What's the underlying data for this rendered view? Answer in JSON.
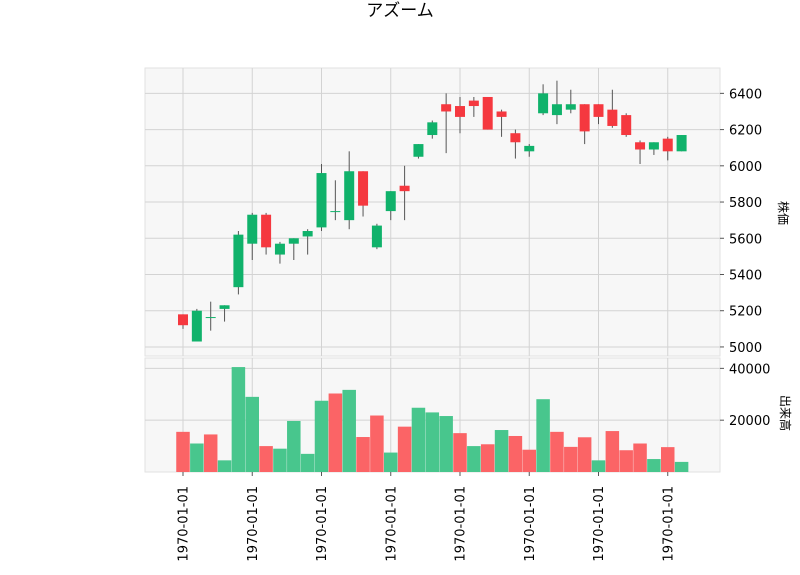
{
  "chart_data": [
    {
      "type": "candlestick",
      "title": "アズーム",
      "ylabel": "株価",
      "ylim": [
        4950,
        6540
      ],
      "yticks": [
        5000,
        5200,
        5400,
        5600,
        5800,
        6000,
        6200,
        6400
      ],
      "x_tick_label": "1970-01-01",
      "grid": true,
      "up_color": "#10b26b",
      "down_color": "#f5383f",
      "candles": [
        {
          "o": 5180,
          "h": 5180,
          "l": 5100,
          "c": 5120
        },
        {
          "o": 5030,
          "h": 5210,
          "l": 5030,
          "c": 5200
        },
        {
          "o": 5160,
          "h": 5250,
          "l": 5090,
          "c": 5165
        },
        {
          "o": 5210,
          "h": 5230,
          "l": 5140,
          "c": 5230
        },
        {
          "o": 5330,
          "h": 5640,
          "l": 5290,
          "c": 5620
        },
        {
          "o": 5570,
          "h": 5740,
          "l": 5480,
          "c": 5730
        },
        {
          "o": 5730,
          "h": 5740,
          "l": 5510,
          "c": 5550
        },
        {
          "o": 5510,
          "h": 5580,
          "l": 5460,
          "c": 5570
        },
        {
          "o": 5570,
          "h": 5600,
          "l": 5480,
          "c": 5600
        },
        {
          "o": 5610,
          "h": 5650,
          "l": 5510,
          "c": 5640
        },
        {
          "o": 5660,
          "h": 6010,
          "l": 5640,
          "c": 5960
        },
        {
          "o": 5750,
          "h": 5920,
          "l": 5700,
          "c": 5750
        },
        {
          "o": 5700,
          "h": 6080,
          "l": 5650,
          "c": 5970
        },
        {
          "o": 5970,
          "h": 5970,
          "l": 5720,
          "c": 5780
        },
        {
          "o": 5550,
          "h": 5680,
          "l": 5540,
          "c": 5670
        },
        {
          "o": 5750,
          "h": 5860,
          "l": 5700,
          "c": 5860
        },
        {
          "o": 5890,
          "h": 6000,
          "l": 5700,
          "c": 5860
        },
        {
          "o": 6050,
          "h": 6120,
          "l": 6040,
          "c": 6120
        },
        {
          "o": 6170,
          "h": 6250,
          "l": 6150,
          "c": 6240
        },
        {
          "o": 6340,
          "h": 6400,
          "l": 6070,
          "c": 6300
        },
        {
          "o": 6330,
          "h": 6380,
          "l": 6180,
          "c": 6270
        },
        {
          "o": 6360,
          "h": 6380,
          "l": 6270,
          "c": 6330
        },
        {
          "o": 6380,
          "h": 6380,
          "l": 6200,
          "c": 6200
        },
        {
          "o": 6300,
          "h": 6310,
          "l": 6160,
          "c": 6270
        },
        {
          "o": 6180,
          "h": 6200,
          "l": 6040,
          "c": 6130
        },
        {
          "o": 6080,
          "h": 6120,
          "l": 6050,
          "c": 6110
        },
        {
          "o": 6290,
          "h": 6450,
          "l": 6280,
          "c": 6400
        },
        {
          "o": 6280,
          "h": 6470,
          "l": 6230,
          "c": 6340
        },
        {
          "o": 6310,
          "h": 6420,
          "l": 6290,
          "c": 6340
        },
        {
          "o": 6340,
          "h": 6340,
          "l": 6120,
          "c": 6190
        },
        {
          "o": 6340,
          "h": 6340,
          "l": 6230,
          "c": 6270
        },
        {
          "o": 6310,
          "h": 6420,
          "l": 6210,
          "c": 6220
        },
        {
          "o": 6280,
          "h": 6290,
          "l": 6160,
          "c": 6170
        },
        {
          "o": 6130,
          "h": 6140,
          "l": 6010,
          "c": 6090
        },
        {
          "o": 6090,
          "h": 6130,
          "l": 6060,
          "c": 6130
        },
        {
          "o": 6150,
          "h": 6160,
          "l": 6030,
          "c": 6080
        },
        {
          "o": 6080,
          "h": 6170,
          "l": 6080,
          "c": 6170
        }
      ]
    },
    {
      "type": "bar",
      "ylabel": "出来高",
      "ylim": [
        0,
        44000
      ],
      "yticks": [
        20000,
        40000
      ],
      "values": [
        15500,
        11000,
        14500,
        4500,
        40500,
        29000,
        10000,
        9000,
        19700,
        7000,
        27500,
        30300,
        31700,
        13500,
        21800,
        7500,
        17500,
        24800,
        23000,
        21600,
        15000,
        10000,
        10700,
        16200,
        13900,
        8600,
        28100,
        15500,
        9700,
        13400,
        4500,
        15800,
        8400,
        11000,
        5000,
        9600,
        3900
      ],
      "colors": [
        "down",
        "up",
        "down",
        "up",
        "up",
        "up",
        "down",
        "up",
        "up",
        "up",
        "up",
        "down",
        "up",
        "down",
        "down",
        "up",
        "down",
        "up",
        "up",
        "up",
        "down",
        "up",
        "down",
        "up",
        "down",
        "down",
        "up",
        "down",
        "down",
        "down",
        "up",
        "down",
        "down",
        "down",
        "up",
        "down",
        "up"
      ]
    }
  ]
}
